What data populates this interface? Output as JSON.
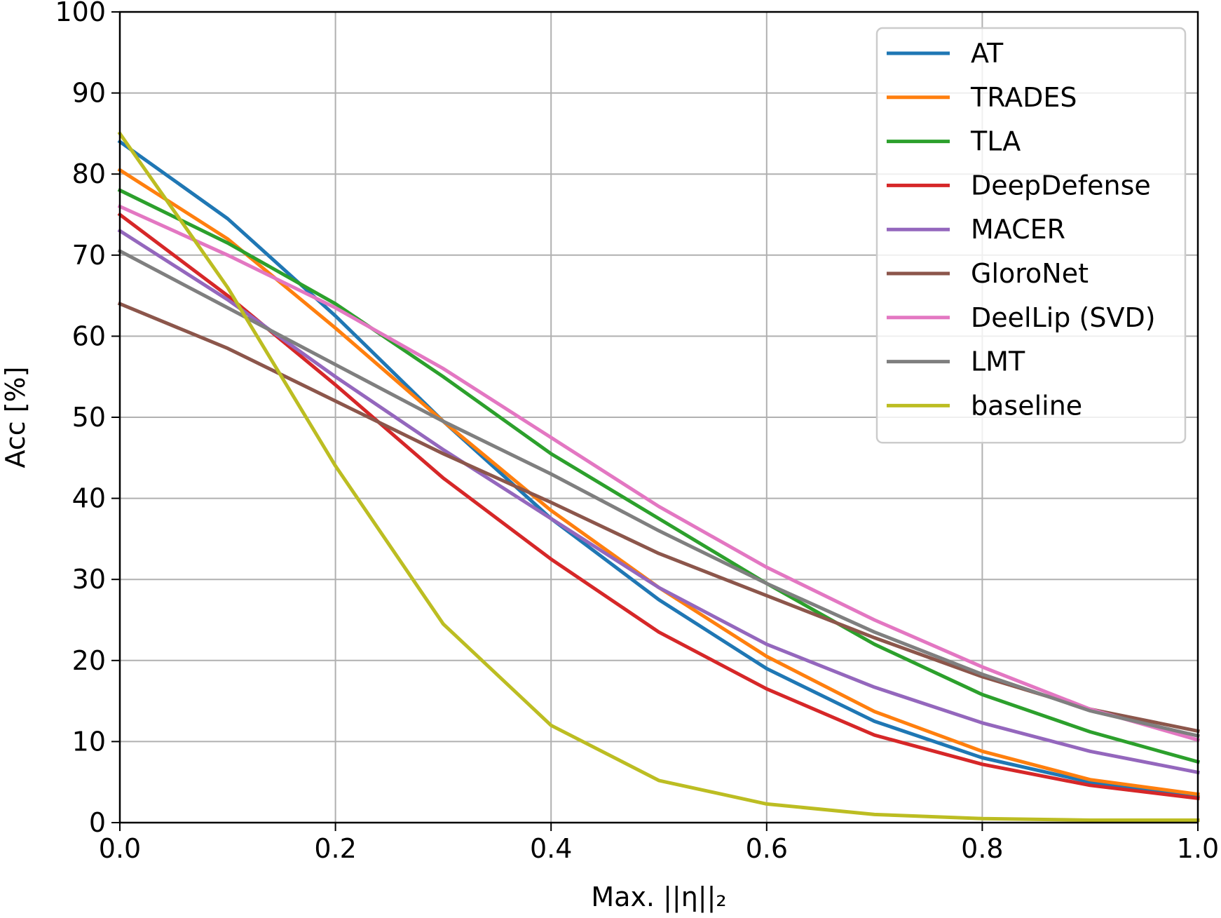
{
  "chart_data": {
    "type": "line",
    "xlabel": "Max. ||η||₂",
    "ylabel": "Acc [%]",
    "xlim": [
      0.0,
      1.0
    ],
    "ylim": [
      0,
      100
    ],
    "xticks": [
      0.0,
      0.2,
      0.4,
      0.6,
      0.8,
      1.0
    ],
    "xtick_labels": [
      "0.0",
      "0.2",
      "0.4",
      "0.6",
      "0.8",
      "1.0"
    ],
    "yticks": [
      0,
      10,
      20,
      30,
      40,
      50,
      60,
      70,
      80,
      90,
      100
    ],
    "ytick_labels": [
      "0",
      "10",
      "20",
      "30",
      "40",
      "50",
      "60",
      "70",
      "80",
      "90",
      "100"
    ],
    "grid": true,
    "legend_position": "top-right",
    "x": [
      0.0,
      0.1,
      0.2,
      0.3,
      0.4,
      0.5,
      0.6,
      0.7,
      0.8,
      0.9,
      1.0
    ],
    "series": [
      {
        "name": "AT",
        "color": "#1f77b4",
        "values": [
          84.0,
          74.5,
          62.5,
          49.5,
          37.5,
          27.5,
          19.0,
          12.5,
          8.0,
          5.0,
          3.2
        ]
      },
      {
        "name": "TRADES",
        "color": "#ff7f0e",
        "values": [
          80.5,
          72.0,
          61.0,
          49.5,
          38.5,
          29.0,
          20.5,
          13.7,
          8.8,
          5.3,
          3.5
        ]
      },
      {
        "name": "TLA",
        "color": "#2ca02c",
        "values": [
          78.0,
          71.5,
          64.0,
          55.0,
          45.5,
          37.5,
          29.5,
          22.0,
          15.8,
          11.2,
          7.5
        ]
      },
      {
        "name": "DeepDefense",
        "color": "#d62728",
        "values": [
          75.0,
          65.0,
          54.0,
          42.5,
          32.5,
          23.5,
          16.5,
          10.8,
          7.2,
          4.6,
          3.0
        ]
      },
      {
        "name": "MACER",
        "color": "#9467bd",
        "values": [
          73.0,
          64.5,
          55.0,
          46.0,
          37.5,
          29.0,
          22.0,
          16.7,
          12.3,
          8.8,
          6.2
        ]
      },
      {
        "name": "GloroNet",
        "color": "#8c564b",
        "values": [
          64.0,
          58.5,
          52.0,
          45.5,
          39.5,
          33.2,
          28.0,
          22.8,
          18.0,
          14.0,
          11.3
        ]
      },
      {
        "name": "DeelLip (SVD)",
        "color": "#e377c2",
        "values": [
          76.0,
          70.0,
          63.5,
          56.0,
          47.5,
          39.0,
          31.5,
          25.0,
          19.2,
          14.0,
          10.2
        ]
      },
      {
        "name": "LMT",
        "color": "#7f7f7f",
        "values": [
          70.5,
          63.5,
          56.5,
          49.5,
          43.0,
          36.0,
          29.5,
          23.5,
          18.3,
          13.8,
          10.7
        ]
      },
      {
        "name": "baseline",
        "color": "#bcbd22",
        "values": [
          85.0,
          66.0,
          44.0,
          24.5,
          12.0,
          5.2,
          2.3,
          1.0,
          0.5,
          0.3,
          0.3
        ]
      }
    ]
  }
}
